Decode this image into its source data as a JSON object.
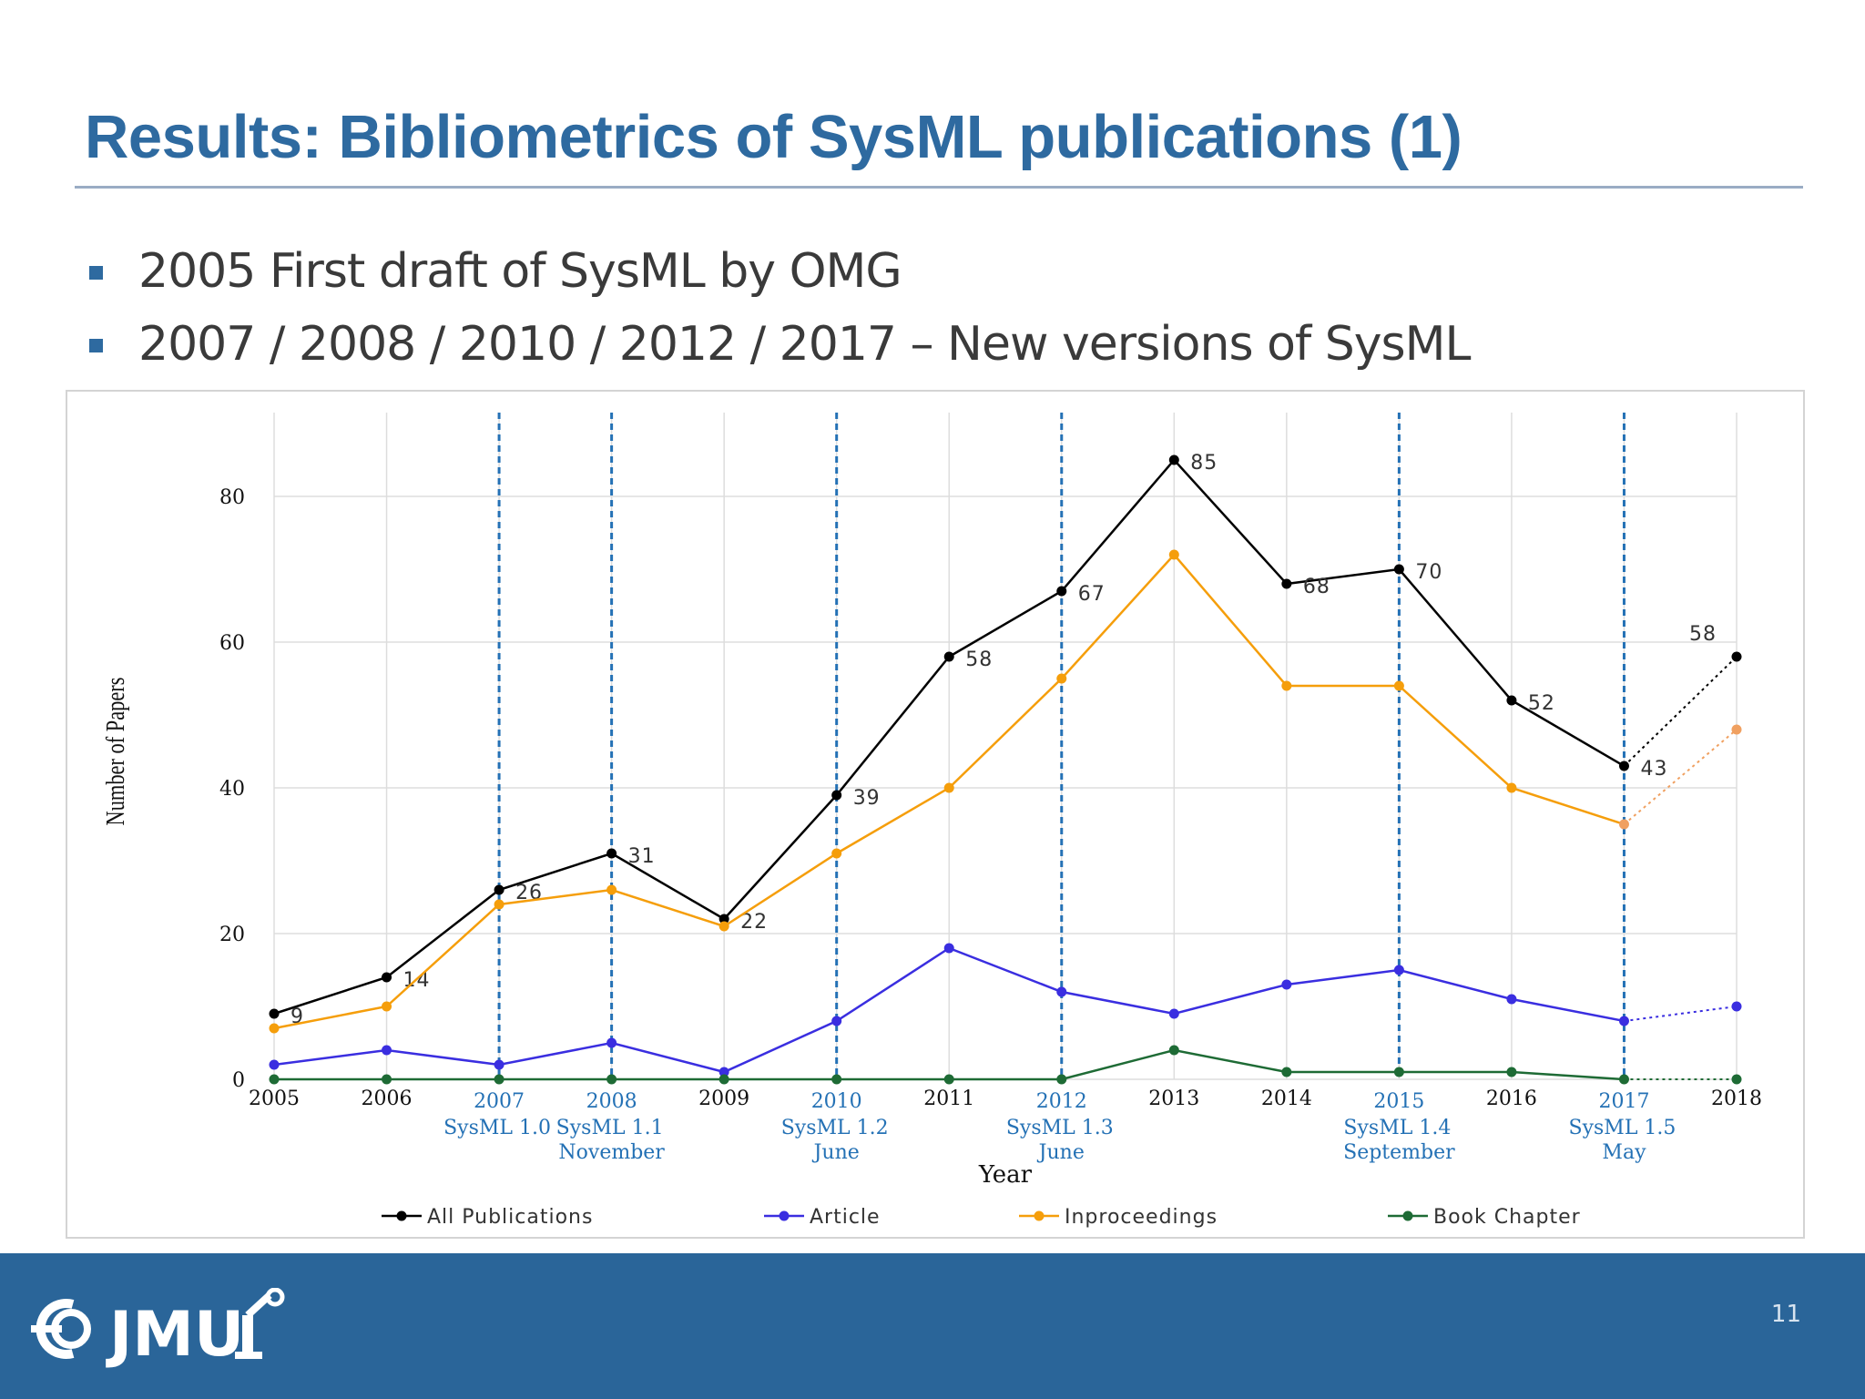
{
  "slide": {
    "title": "Results: Bibliometrics of SysML publications (1)",
    "bullets": [
      "2005 First draft of SysML by OMG",
      "2007 / 2008 / 2010 / 2012 / 2017 – New  versions of SysML"
    ],
    "page_number": "11",
    "logo_text": "JMU"
  },
  "colors": {
    "title": "#2e6aa0",
    "footer": "#2a6599",
    "all_publications": "#000000",
    "article": "#3a2ee0",
    "inproceedings": "#f59e0b",
    "book_chapter": "#1e6b35",
    "version_lines": "#2471b5",
    "projection_inproceedings": "#f0a060"
  },
  "chart_data": {
    "type": "line",
    "xlabel": "Year",
    "ylabel": "Number of Papers",
    "ylim": [
      0,
      90
    ],
    "yticks": [
      0,
      20,
      40,
      60,
      80
    ],
    "grid": true,
    "legend_position": "bottom",
    "x": [
      2005,
      2006,
      2007,
      2008,
      2009,
      2010,
      2011,
      2012,
      2013,
      2014,
      2015,
      2016,
      2017,
      2018
    ],
    "x_tick_labels": [
      "2005",
      "2006",
      "2007",
      "2008",
      "2009",
      "2010",
      "2011",
      "2012",
      "2013",
      "2014",
      "2015",
      "2016",
      "2017",
      "2018"
    ],
    "highlight_years": [
      2007,
      2008,
      2010,
      2012,
      2015,
      2017
    ],
    "version_annotations": [
      {
        "x": 2007,
        "lines": [
          "SysML  1.0"
        ]
      },
      {
        "x": 2008,
        "lines": [
          "SysML  1.1",
          "November"
        ]
      },
      {
        "x": 2010,
        "lines": [
          "SysML  1.2",
          "June"
        ]
      },
      {
        "x": 2012,
        "lines": [
          "SysML  1.3",
          "June"
        ]
      },
      {
        "x": 2015,
        "lines": [
          "SysML  1.4",
          "September"
        ]
      },
      {
        "x": 2017,
        "lines": [
          "SysML  1.5",
          "May"
        ]
      }
    ],
    "projected_from": 2017,
    "series": [
      {
        "name": "All Publications",
        "color": "#000000",
        "values": [
          9,
          14,
          26,
          31,
          22,
          39,
          58,
          67,
          85,
          68,
          70,
          52,
          43,
          58
        ],
        "data_labels": [
          "9",
          "14",
          "26",
          "31",
          "22",
          "39",
          "58",
          "67",
          "85",
          "68",
          "70",
          "52",
          "43",
          "58"
        ]
      },
      {
        "name": "Article",
        "color": "#3a2ee0",
        "values": [
          2,
          4,
          2,
          5,
          1,
          8,
          18,
          12,
          9,
          13,
          15,
          11,
          8,
          10
        ]
      },
      {
        "name": "Inproceedings",
        "color": "#f59e0b",
        "values": [
          7,
          10,
          24,
          26,
          21,
          31,
          40,
          55,
          72,
          54,
          54,
          40,
          35,
          48
        ]
      },
      {
        "name": "Book Chapter",
        "color": "#1e6b35",
        "values": [
          0,
          0,
          0,
          0,
          0,
          0,
          0,
          0,
          4,
          1,
          1,
          1,
          0,
          0
        ]
      }
    ]
  }
}
